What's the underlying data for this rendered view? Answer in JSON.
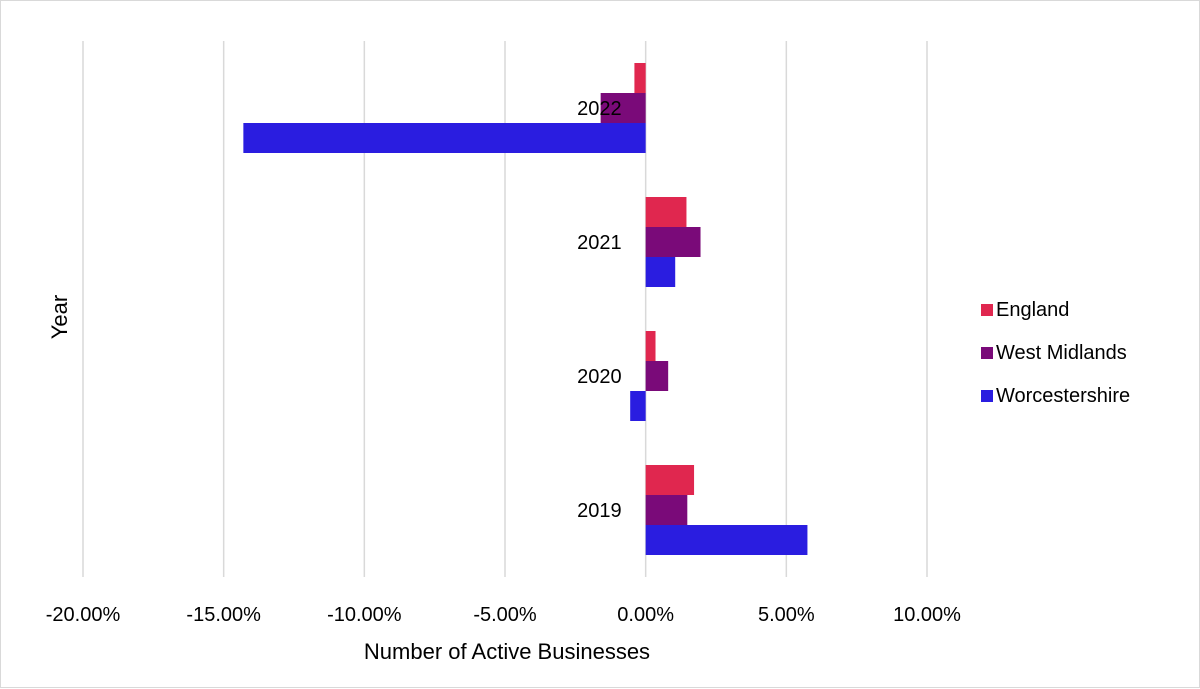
{
  "chart_data": {
    "type": "bar",
    "orientation": "horizontal",
    "title": "",
    "xlabel": "Number of Active Businesses",
    "ylabel": "Year",
    "categories": [
      "2022",
      "2021",
      "2020",
      "2019"
    ],
    "series": [
      {
        "name": "England",
        "color": "#e0274f",
        "values": [
          -0.4,
          1.45,
          0.35,
          1.72
        ]
      },
      {
        "name": "West Midlands",
        "color": "#7a0a79",
        "values": [
          -1.6,
          1.95,
          0.8,
          1.48
        ]
      },
      {
        "name": "Worcestershire",
        "color": "#2a1de0",
        "values": [
          -14.3,
          1.05,
          -0.55,
          5.75
        ]
      }
    ],
    "xlim": [
      -20,
      10
    ],
    "xticks": [
      -20,
      -15,
      -10,
      -5,
      0,
      5,
      10
    ],
    "xtick_labels": [
      "-20.00%",
      "-15.00%",
      "-10.00%",
      "-5.00%",
      "0.00%",
      "5.00%",
      "10.00%"
    ],
    "grid": "vertical",
    "legend_position": "right"
  }
}
